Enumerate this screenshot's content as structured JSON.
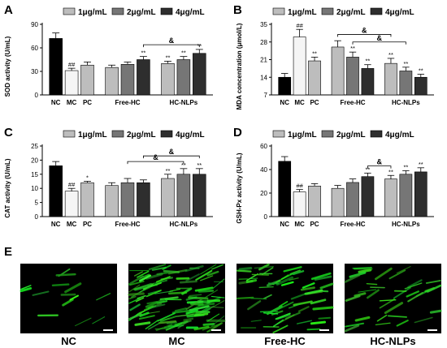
{
  "legend": {
    "series_names": [
      "1μg/mL",
      "2μg/mL",
      "4μg/mL"
    ],
    "colors": [
      "#bdbdbd",
      "#767676",
      "#2e2e2e"
    ]
  },
  "group_colors": {
    "NC": "#000000",
    "MC": "#f5f5f5",
    "PC": "#bdbdbd"
  },
  "group_labels": [
    "NC",
    "MC",
    "PC",
    "Free-HC",
    "HC-NLPs"
  ],
  "chart_data": [
    {
      "type": "bar",
      "panel_label": "A",
      "ylabel": "SOD activity (U/mL)",
      "ylim": [
        0,
        90
      ],
      "yticks": [
        0,
        30,
        60,
        90
      ],
      "bars": [
        {
          "group": "NC",
          "value": 72,
          "err": 7,
          "sig": ""
        },
        {
          "group": "MC",
          "value": 31,
          "err": 3,
          "sig": "##"
        },
        {
          "group": "PC",
          "value": 38,
          "err": 4,
          "sig": ""
        },
        {
          "group": "Free-HC",
          "series": "1μg/mL",
          "value": 35,
          "err": 3,
          "sig": ""
        },
        {
          "group": "Free-HC",
          "series": "2μg/mL",
          "value": 39,
          "err": 3,
          "sig": ""
        },
        {
          "group": "Free-HC",
          "series": "4μg/mL",
          "value": 45,
          "err": 4,
          "sig": "**"
        },
        {
          "group": "HC-NLPs",
          "series": "1μg/mL",
          "value": 40,
          "err": 3,
          "sig": "**"
        },
        {
          "group": "HC-NLPs",
          "series": "2μg/mL",
          "value": 45,
          "err": 4,
          "sig": "**"
        },
        {
          "group": "HC-NLPs",
          "series": "4μg/mL",
          "value": 53,
          "err": 5,
          "sig": "**"
        }
      ],
      "brackets": [
        {
          "from": 5,
          "to": 8,
          "y": 64,
          "label": "&"
        }
      ]
    },
    {
      "type": "bar",
      "panel_label": "B",
      "ylabel": "MDA concentration (μmol/L)",
      "ylim": [
        7,
        35
      ],
      "yticks": [
        7,
        14,
        21,
        28,
        35
      ],
      "bars": [
        {
          "group": "NC",
          "value": 14,
          "err": 1.5,
          "sig": ""
        },
        {
          "group": "MC",
          "value": 30,
          "err": 3,
          "sig": "##"
        },
        {
          "group": "PC",
          "value": 20.5,
          "err": 1.5,
          "sig": "**"
        },
        {
          "group": "Free-HC",
          "series": "1μg/mL",
          "value": 26,
          "err": 2.5,
          "sig": ""
        },
        {
          "group": "Free-HC",
          "series": "2μg/mL",
          "value": 22,
          "err": 2,
          "sig": "**"
        },
        {
          "group": "Free-HC",
          "series": "4μg/mL",
          "value": 17.5,
          "err": 1.5,
          "sig": "**"
        },
        {
          "group": "HC-NLPs",
          "series": "1μg/mL",
          "value": 19.5,
          "err": 2,
          "sig": "**"
        },
        {
          "group": "HC-NLPs",
          "series": "2μg/mL",
          "value": 16.5,
          "err": 1.5,
          "sig": "**"
        },
        {
          "group": "HC-NLPs",
          "series": "4μg/mL",
          "value": 14,
          "err": 1.2,
          "sig": "**"
        }
      ],
      "brackets": [
        {
          "from": 3,
          "to": 6,
          "y": 31,
          "label": "&"
        },
        {
          "from": 4,
          "to": 7,
          "y": 28,
          "label": "&"
        }
      ]
    },
    {
      "type": "bar",
      "panel_label": "C",
      "ylabel": "CAT activity (U/mL)",
      "ylim": [
        0,
        25
      ],
      "yticks": [
        0,
        5,
        10,
        15,
        20,
        25
      ],
      "bars": [
        {
          "group": "NC",
          "value": 18,
          "err": 1.5,
          "sig": ""
        },
        {
          "group": "MC",
          "value": 9,
          "err": 1,
          "sig": "##"
        },
        {
          "group": "PC",
          "value": 12,
          "err": 0.5,
          "sig": "*"
        },
        {
          "group": "Free-HC",
          "series": "1μg/mL",
          "value": 11,
          "err": 1,
          "sig": ""
        },
        {
          "group": "Free-HC",
          "series": "2μg/mL",
          "value": 12,
          "err": 1.5,
          "sig": ""
        },
        {
          "group": "Free-HC",
          "series": "4μg/mL",
          "value": 12,
          "err": 1,
          "sig": ""
        },
        {
          "group": "HC-NLPs",
          "series": "1μg/mL",
          "value": 13.5,
          "err": 1.5,
          "sig": "**"
        },
        {
          "group": "HC-NLPs",
          "series": "2μg/mL",
          "value": 15,
          "err": 2,
          "sig": "**"
        },
        {
          "group": "HC-NLPs",
          "series": "4μg/mL",
          "value": 15,
          "err": 2,
          "sig": "**"
        }
      ],
      "brackets": [
        {
          "from": 4,
          "to": 7,
          "y": 19.5,
          "label": "&"
        },
        {
          "from": 5,
          "to": 8,
          "y": 21.5,
          "label": "&"
        }
      ]
    },
    {
      "type": "bar",
      "panel_label": "D",
      "ylabel": "GSH-Px activity (U/mL)",
      "ylim": [
        0,
        60
      ],
      "yticks": [
        0,
        20,
        40,
        60
      ],
      "bars": [
        {
          "group": "NC",
          "value": 47,
          "err": 4,
          "sig": ""
        },
        {
          "group": "MC",
          "value": 21,
          "err": 2,
          "sig": "##"
        },
        {
          "group": "PC",
          "value": 26,
          "err": 2,
          "sig": ""
        },
        {
          "group": "Free-HC",
          "series": "1μg/mL",
          "value": 24,
          "err": 2.5,
          "sig": ""
        },
        {
          "group": "Free-HC",
          "series": "2μg/mL",
          "value": 29,
          "err": 3,
          "sig": ""
        },
        {
          "group": "Free-HC",
          "series": "4μg/mL",
          "value": 34,
          "err": 3,
          "sig": "**"
        },
        {
          "group": "HC-NLPs",
          "series": "1μg/mL",
          "value": 32,
          "err": 3,
          "sig": "**"
        },
        {
          "group": "HC-NLPs",
          "series": "2μg/mL",
          "value": 36,
          "err": 3,
          "sig": "**"
        },
        {
          "group": "HC-NLPs",
          "series": "4μg/mL",
          "value": 38,
          "err": 3.5,
          "sig": "**"
        }
      ],
      "brackets": [
        {
          "from": 5,
          "to": 6,
          "y": 43,
          "label": "&"
        }
      ]
    }
  ],
  "panel_E": {
    "panel_label": "E",
    "images": [
      {
        "label": "NC",
        "density": 0.12
      },
      {
        "label": "MC",
        "density": 1.0
      },
      {
        "label": "Free-HC",
        "density": 0.5
      },
      {
        "label": "HC-NLPs",
        "density": 0.3
      }
    ]
  }
}
